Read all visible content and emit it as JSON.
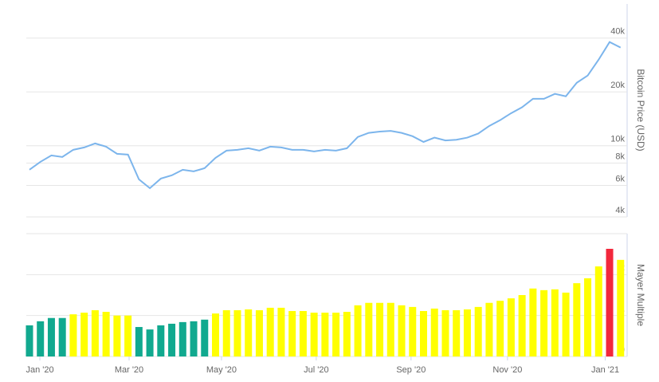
{
  "chart_data": [
    {
      "type": "line",
      "y_label": "Bitcoin Price (USD)",
      "log_scale": true,
      "grid": true,
      "x": [
        0,
        1,
        2,
        3,
        4,
        5,
        6,
        7,
        8,
        9,
        10,
        11,
        12,
        13,
        14,
        15,
        16,
        17,
        18,
        19,
        20,
        21,
        22,
        23,
        24,
        25,
        26,
        27,
        28,
        29,
        30,
        31,
        32,
        33,
        34,
        35,
        36,
        37,
        38,
        39,
        40,
        41,
        42,
        43,
        44,
        45,
        46,
        47,
        48,
        49,
        50,
        51,
        52,
        53,
        54
      ],
      "xlim": [
        -0.29,
        54.6
      ],
      "series": [
        {
          "name": "Bitcoin Price",
          "color": "#7cb5ec",
          "values": [
            7340,
            8130,
            8830,
            8650,
            9490,
            9780,
            10300,
            9880,
            9010,
            8920,
            6490,
            5790,
            6550,
            6830,
            7340,
            7190,
            7490,
            8560,
            9390,
            9490,
            9680,
            9390,
            9880,
            9780,
            9490,
            9490,
            9290,
            9490,
            9390,
            9680,
            11200,
            11800,
            12000,
            12100,
            11800,
            11300,
            10500,
            11100,
            10700,
            10800,
            11100,
            11700,
            12900,
            13900,
            15200,
            16400,
            18300,
            18300,
            19500,
            18900,
            22500,
            24700,
            30300,
            38000,
            35400
          ]
        }
      ],
      "ylim": [
        4000,
        62000
      ],
      "yticks": [
        {
          "value": 4000,
          "label": "4k"
        },
        {
          "value": 6000,
          "label": "6k"
        },
        {
          "value": 8000,
          "label": "8k"
        },
        {
          "value": 10000,
          "label": "10k"
        },
        {
          "value": 20000,
          "label": "20k"
        },
        {
          "value": 40000,
          "label": "40k"
        }
      ]
    },
    {
      "type": "bar",
      "y_label": "Mayer Multiple",
      "grid": true,
      "x": [
        0,
        1,
        2,
        3,
        4,
        5,
        6,
        7,
        8,
        9,
        10,
        11,
        12,
        13,
        14,
        15,
        16,
        17,
        18,
        19,
        20,
        21,
        22,
        23,
        24,
        25,
        26,
        27,
        28,
        29,
        30,
        31,
        32,
        33,
        34,
        35,
        36,
        37,
        38,
        39,
        40,
        41,
        42,
        43,
        44,
        45,
        46,
        47,
        48,
        49,
        50,
        51,
        52,
        53,
        54
      ],
      "xlim": [
        -0.29,
        54.6
      ],
      "values": [
        0.76,
        0.86,
        0.94,
        0.94,
        1.03,
        1.07,
        1.13,
        1.09,
        1.0,
        1.0,
        0.72,
        0.66,
        0.76,
        0.8,
        0.84,
        0.86,
        0.9,
        1.05,
        1.13,
        1.13,
        1.15,
        1.13,
        1.19,
        1.19,
        1.11,
        1.11,
        1.07,
        1.07,
        1.07,
        1.09,
        1.25,
        1.31,
        1.31,
        1.31,
        1.25,
        1.21,
        1.11,
        1.17,
        1.13,
        1.13,
        1.15,
        1.21,
        1.31,
        1.36,
        1.42,
        1.5,
        1.66,
        1.62,
        1.64,
        1.56,
        1.79,
        1.91,
        2.2,
        2.63,
        2.36
      ],
      "colors": [
        "#11a98f",
        "#11a98f",
        "#11a98f",
        "#11a98f",
        "#ffff00",
        "#ffff00",
        "#ffff00",
        "#ffff00",
        "#ffff00",
        "#ffff00",
        "#11a98f",
        "#11a98f",
        "#11a98f",
        "#11a98f",
        "#11a98f",
        "#11a98f",
        "#11a98f",
        "#ffff00",
        "#ffff00",
        "#ffff00",
        "#ffff00",
        "#ffff00",
        "#ffff00",
        "#ffff00",
        "#ffff00",
        "#ffff00",
        "#ffff00",
        "#ffff00",
        "#ffff00",
        "#ffff00",
        "#ffff00",
        "#ffff00",
        "#ffff00",
        "#ffff00",
        "#ffff00",
        "#ffff00",
        "#ffff00",
        "#ffff00",
        "#ffff00",
        "#ffff00",
        "#ffff00",
        "#ffff00",
        "#ffff00",
        "#ffff00",
        "#ffff00",
        "#ffff00",
        "#ffff00",
        "#ffff00",
        "#ffff00",
        "#ffff00",
        "#ffff00",
        "#ffff00",
        "#ffff00",
        "#f2283c",
        "#ffff00"
      ],
      "ylim": [
        0,
        3
      ],
      "yticks": [
        0,
        1,
        2
      ],
      "xticks": [
        {
          "value": 0.95,
          "label": "Jan '20"
        },
        {
          "value": 9.1,
          "label": "Mar '20"
        },
        {
          "value": 17.54,
          "label": "May '20"
        },
        {
          "value": 26.2,
          "label": "Jul '20"
        },
        {
          "value": 34.86,
          "label": "Sep '20"
        },
        {
          "value": 43.67,
          "label": "Nov '20"
        },
        {
          "value": 52.6,
          "label": "Jan '21"
        }
      ]
    }
  ]
}
